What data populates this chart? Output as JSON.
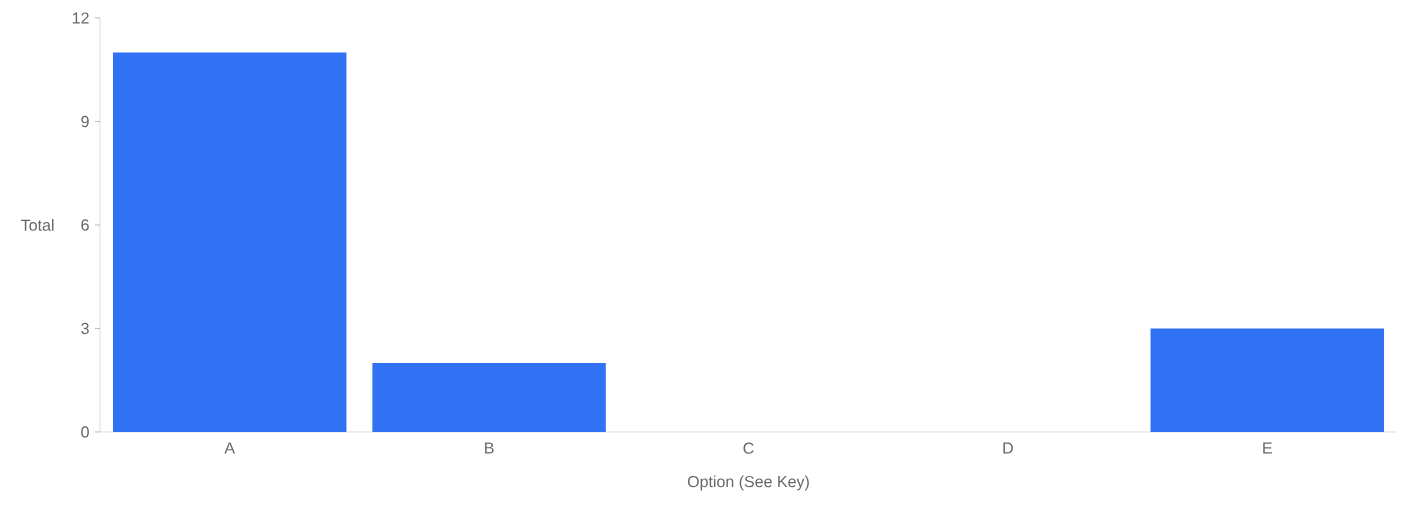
{
  "chart_data": {
    "type": "bar",
    "xlabel": "Option (See Key)",
    "ylabel": "Total",
    "categories": [
      "A",
      "B",
      "C",
      "D",
      "E"
    ],
    "values": [
      11,
      2,
      0,
      0,
      3
    ],
    "color": "#3072f3",
    "ylim": [
      0,
      12
    ],
    "yticks": [
      0,
      3,
      6,
      9,
      12
    ],
    "grid": false
  }
}
